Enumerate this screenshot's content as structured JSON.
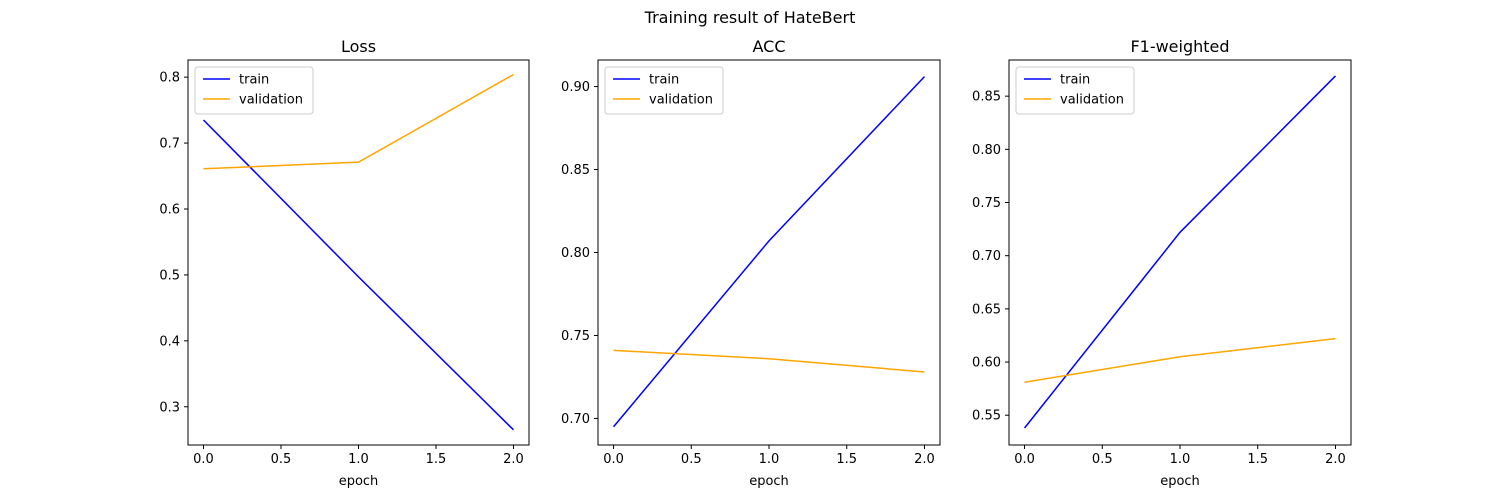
{
  "suptitle": "Training result of HateBert",
  "chart_data": [
    {
      "type": "line",
      "title": "Loss",
      "xlabel": "epoch",
      "ylabel": "",
      "x": [
        0,
        1,
        2
      ],
      "xlim": [
        -0.1,
        2.1
      ],
      "ylim": [
        0.242,
        0.826
      ],
      "xticks": [
        0.0,
        0.5,
        1.0,
        1.5,
        2.0
      ],
      "yticks": [
        0.3,
        0.4,
        0.5,
        0.6,
        0.7,
        0.8
      ],
      "xtick_labels": [
        "0.0",
        "0.5",
        "1.0",
        "1.5",
        "2.0"
      ],
      "ytick_labels": [
        "0.3",
        "0.4",
        "0.5",
        "0.6",
        "0.7",
        "0.8"
      ],
      "grid": false,
      "legend": "upper left",
      "series": [
        {
          "name": "train",
          "color": "#0000ff",
          "values": [
            0.735,
            0.497,
            0.265
          ]
        },
        {
          "name": "validation",
          "color": "#ffa500",
          "values": [
            0.661,
            0.671,
            0.804
          ]
        }
      ]
    },
    {
      "type": "line",
      "title": "ACC",
      "xlabel": "epoch",
      "ylabel": "",
      "x": [
        0,
        1,
        2
      ],
      "xlim": [
        -0.1,
        2.1
      ],
      "ylim": [
        0.684,
        0.916
      ],
      "xticks": [
        0.0,
        0.5,
        1.0,
        1.5,
        2.0
      ],
      "yticks": [
        0.7,
        0.75,
        0.8,
        0.85,
        0.9
      ],
      "xtick_labels": [
        "0.0",
        "0.5",
        "1.0",
        "1.5",
        "2.0"
      ],
      "ytick_labels": [
        "0.70",
        "0.75",
        "0.80",
        "0.85",
        "0.90"
      ],
      "grid": false,
      "legend": "upper left",
      "series": [
        {
          "name": "train",
          "color": "#0000ff",
          "values": [
            0.695,
            0.807,
            0.906
          ]
        },
        {
          "name": "validation",
          "color": "#ffa500",
          "values": [
            0.741,
            0.736,
            0.728
          ]
        }
      ]
    },
    {
      "type": "line",
      "title": "F1-weighted",
      "xlabel": "epoch",
      "ylabel": "",
      "x": [
        0,
        1,
        2
      ],
      "xlim": [
        -0.1,
        2.1
      ],
      "ylim": [
        0.522,
        0.884
      ],
      "xticks": [
        0.0,
        0.5,
        1.0,
        1.5,
        2.0
      ],
      "yticks": [
        0.55,
        0.6,
        0.65,
        0.7,
        0.75,
        0.8,
        0.85
      ],
      "xtick_labels": [
        "0.0",
        "0.5",
        "1.0",
        "1.5",
        "2.0"
      ],
      "ytick_labels": [
        "0.55",
        "0.60",
        "0.65",
        "0.70",
        "0.75",
        "0.80",
        "0.85"
      ],
      "grid": false,
      "legend": "upper left",
      "series": [
        {
          "name": "train",
          "color": "#0000ff",
          "values": [
            0.538,
            0.722,
            0.869
          ]
        },
        {
          "name": "validation",
          "color": "#ffa500",
          "values": [
            0.581,
            0.605,
            0.622
          ]
        }
      ]
    }
  ]
}
